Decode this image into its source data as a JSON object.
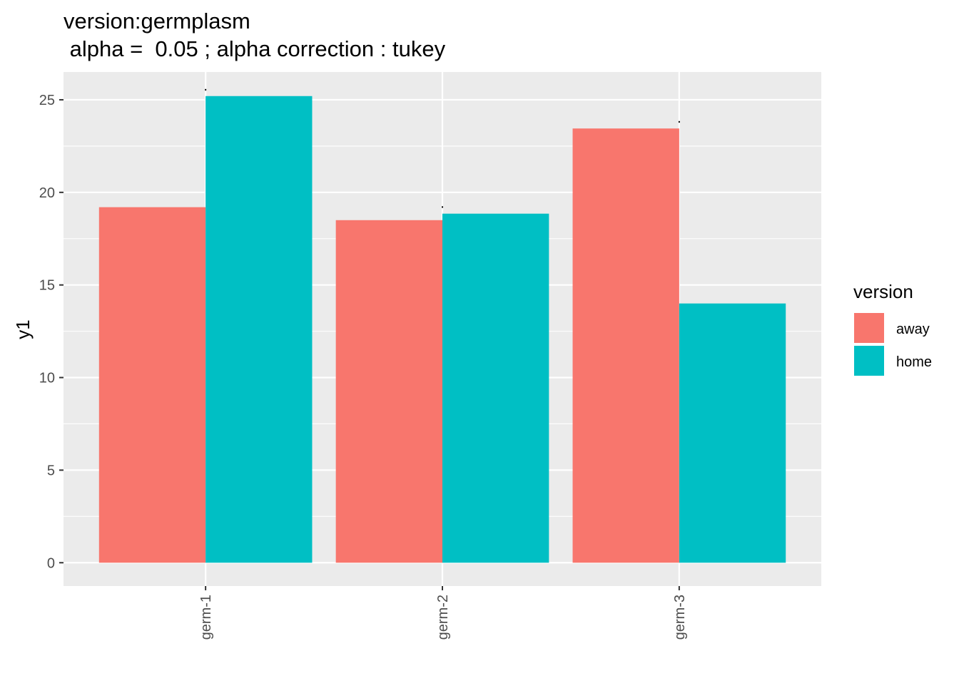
{
  "chart_data": {
    "type": "bar",
    "title_lines": [
      "version:germplasm",
      " alpha =  0.05 ; alpha correction : tukey"
    ],
    "xlabel": "",
    "ylabel": "y1",
    "categories": [
      "germ-1",
      "germ-2",
      "germ-3"
    ],
    "series": [
      {
        "name": "away",
        "color": "#F8766D",
        "values": [
          19.2,
          18.5,
          23.45
        ]
      },
      {
        "name": "home",
        "color": "#00BFC4",
        "values": [
          25.2,
          18.85,
          14.0
        ]
      }
    ],
    "group_labels": [
      ".",
      ".",
      "."
    ],
    "y_ticks": [
      0,
      5,
      10,
      15,
      20,
      25
    ],
    "ylim": [
      -1.26,
      26.5
    ],
    "legend": {
      "title": "version",
      "position": "right",
      "items": [
        "away",
        "home"
      ]
    },
    "grid": true,
    "panel_color": "#EBEBEB",
    "grid_color": "#FFFFFF"
  }
}
